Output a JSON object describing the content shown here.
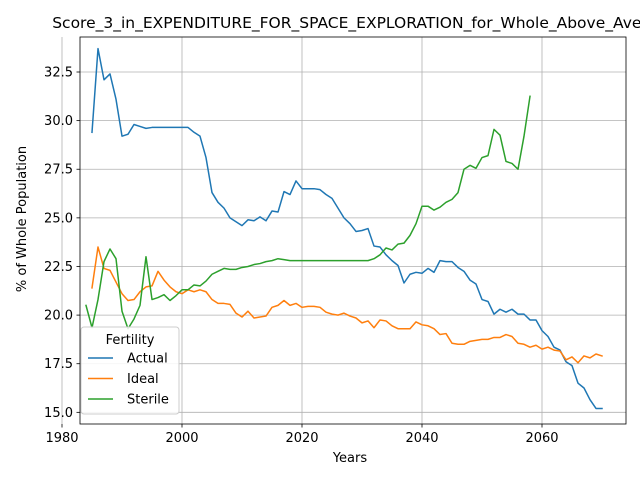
{
  "chart_data": {
    "type": "line",
    "title": "Score_3_in_EXPENDITURE_FOR_SPACE_EXPLORATION_for_Whole_Above_Aver",
    "xlabel": "Years",
    "ylabel": "% of Whole Population",
    "xlim": [
      1983,
      2074
    ],
    "ylim": [
      14.4,
      34.3
    ],
    "xticks": [
      1980,
      2000,
      2020,
      2040,
      2060
    ],
    "yticks": [
      15.0,
      17.5,
      20.0,
      22.5,
      25.0,
      27.5,
      30.0,
      32.5
    ],
    "xtick_labels": [
      "1980",
      "2000",
      "2020",
      "2040",
      "2060"
    ],
    "ytick_labels": [
      "15.0",
      "17.5",
      "20.0",
      "22.5",
      "25.0",
      "27.5",
      "30.0",
      "32.5"
    ],
    "grid": true,
    "legend": {
      "title": "Fertility",
      "placement": "lower-left"
    },
    "series": [
      {
        "name": "Actual",
        "color": "#1f77b4",
        "x": [
          1985,
          1986,
          1987,
          1988,
          1989,
          1990,
          1991,
          1992,
          1993,
          1994,
          1995,
          1996,
          1997,
          1998,
          1999,
          2000,
          2001,
          2002,
          2003,
          2004,
          2005,
          2006,
          2007,
          2008,
          2009,
          2010,
          2011,
          2012,
          2013,
          2014,
          2015,
          2016,
          2017,
          2018,
          2019,
          2020,
          2021,
          2022,
          2023,
          2024,
          2025,
          2026,
          2027,
          2028,
          2029,
          2030,
          2031,
          2032,
          2033,
          2034,
          2035,
          2036,
          2037,
          2038,
          2039,
          2040,
          2041,
          2042,
          2043,
          2044,
          2045,
          2046,
          2047,
          2048,
          2049,
          2050,
          2051,
          2052,
          2053,
          2054,
          2055,
          2056,
          2057,
          2058,
          2059,
          2060,
          2061,
          2062,
          2063,
          2064,
          2065,
          2066,
          2067,
          2068,
          2069,
          2070
        ],
        "values": [
          29.4,
          33.7,
          32.1,
          32.4,
          31.1,
          29.2,
          29.3,
          29.8,
          29.7,
          29.6,
          29.65,
          29.65,
          29.65,
          29.65,
          29.65,
          29.65,
          29.65,
          29.4,
          29.2,
          28.1,
          26.3,
          25.8,
          25.5,
          25.0,
          24.8,
          24.6,
          24.9,
          24.85,
          25.05,
          24.85,
          25.35,
          25.3,
          26.35,
          26.2,
          26.9,
          26.5,
          26.5,
          26.5,
          26.45,
          26.2,
          26.0,
          25.5,
          25.0,
          24.7,
          24.3,
          24.35,
          24.45,
          23.55,
          23.5,
          23.1,
          22.8,
          22.55,
          21.65,
          22.1,
          22.2,
          22.15,
          22.4,
          22.2,
          22.8,
          22.75,
          22.75,
          22.45,
          22.25,
          21.8,
          21.6,
          20.8,
          20.7,
          20.05,
          20.3,
          20.15,
          20.3,
          20.05,
          20.05,
          19.75,
          19.75,
          19.2,
          18.9,
          18.35,
          18.2,
          17.6,
          17.4,
          16.5,
          16.25,
          15.65,
          15.2,
          15.2
        ]
      },
      {
        "name": "Ideal",
        "color": "#ff7f0e",
        "x": [
          1985,
          1986,
          1987,
          1988,
          1989,
          1990,
          1991,
          1992,
          1993,
          1994,
          1995,
          1996,
          1997,
          1998,
          1999,
          2000,
          2001,
          2002,
          2003,
          2004,
          2005,
          2006,
          2007,
          2008,
          2009,
          2010,
          2011,
          2012,
          2013,
          2014,
          2015,
          2016,
          2017,
          2018,
          2019,
          2020,
          2021,
          2022,
          2023,
          2024,
          2025,
          2026,
          2027,
          2028,
          2029,
          2030,
          2031,
          2032,
          2033,
          2034,
          2035,
          2036,
          2037,
          2038,
          2039,
          2040,
          2041,
          2042,
          2043,
          2044,
          2045,
          2046,
          2047,
          2048,
          2049,
          2050,
          2051,
          2052,
          2053,
          2054,
          2055,
          2056,
          2057,
          2058,
          2059,
          2060,
          2061,
          2062,
          2063,
          2064,
          2065,
          2066,
          2067,
          2068,
          2069,
          2070
        ],
        "values": [
          21.4,
          23.5,
          22.4,
          22.3,
          21.7,
          21.1,
          20.75,
          20.8,
          21.2,
          21.45,
          21.5,
          22.25,
          21.8,
          21.45,
          21.2,
          21.1,
          21.3,
          21.2,
          21.3,
          21.2,
          20.8,
          20.6,
          20.6,
          20.55,
          20.1,
          19.9,
          20.2,
          19.85,
          19.9,
          19.95,
          20.4,
          20.5,
          20.75,
          20.5,
          20.6,
          20.4,
          20.45,
          20.45,
          20.4,
          20.15,
          20.05,
          20.0,
          20.1,
          19.95,
          19.85,
          19.6,
          19.7,
          19.35,
          19.75,
          19.7,
          19.45,
          19.3,
          19.3,
          19.3,
          19.65,
          19.5,
          19.45,
          19.3,
          19.0,
          19.05,
          18.55,
          18.5,
          18.5,
          18.65,
          18.7,
          18.75,
          18.75,
          18.85,
          18.85,
          19.0,
          18.9,
          18.55,
          18.5,
          18.35,
          18.45,
          18.25,
          18.35,
          18.2,
          18.15,
          17.7,
          17.85,
          17.55,
          17.9,
          17.8,
          18.0,
          17.9
        ]
      },
      {
        "name": "Sterile",
        "color": "#2ca02c",
        "x": [
          1984,
          1985,
          1986,
          1987,
          1988,
          1989,
          1990,
          1991,
          1992,
          1993,
          1994,
          1995,
          1996,
          1997,
          1998,
          1999,
          2000,
          2001,
          2002,
          2003,
          2004,
          2005,
          2006,
          2007,
          2008,
          2009,
          2010,
          2011,
          2012,
          2013,
          2014,
          2015,
          2016,
          2017,
          2018,
          2019,
          2020,
          2021,
          2022,
          2023,
          2024,
          2025,
          2026,
          2027,
          2028,
          2029,
          2030,
          2031,
          2032,
          2033,
          2034,
          2035,
          2036,
          2037,
          2038,
          2039,
          2040,
          2041,
          2042,
          2043,
          2044,
          2045,
          2046,
          2047,
          2048,
          2049,
          2050,
          2051,
          2052,
          2053,
          2054,
          2055,
          2056,
          2057,
          2058
        ],
        "values": [
          20.5,
          19.35,
          20.8,
          22.75,
          23.4,
          22.9,
          20.2,
          19.3,
          19.8,
          20.5,
          23.0,
          20.8,
          20.9,
          21.05,
          20.75,
          21.0,
          21.3,
          21.3,
          21.55,
          21.5,
          21.75,
          22.1,
          22.25,
          22.4,
          22.35,
          22.35,
          22.45,
          22.5,
          22.6,
          22.65,
          22.75,
          22.8,
          22.9,
          22.85,
          22.8,
          22.8,
          22.8,
          22.8,
          22.8,
          22.8,
          22.8,
          22.8,
          22.8,
          22.8,
          22.8,
          22.8,
          22.8,
          22.8,
          22.9,
          23.1,
          23.45,
          23.35,
          23.65,
          23.7,
          24.1,
          24.7,
          25.6,
          25.6,
          25.4,
          25.55,
          25.8,
          25.95,
          26.3,
          27.5,
          27.7,
          27.55,
          28.1,
          28.2,
          29.55,
          29.25,
          27.9,
          27.8,
          27.5,
          29.2,
          31.25
        ]
      }
    ]
  }
}
